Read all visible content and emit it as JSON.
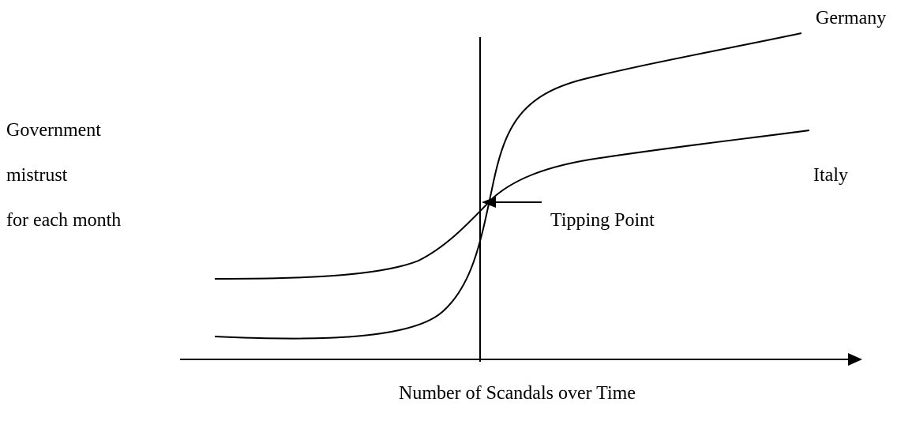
{
  "y_axis_label": [
    "Government",
    "mistrust",
    "for each month"
  ],
  "x_axis_label": "Number of Scandals over Time",
  "curves": [
    {
      "label": "Germany"
    },
    {
      "label": "Italy"
    }
  ],
  "annotation": "Tipping Point"
}
